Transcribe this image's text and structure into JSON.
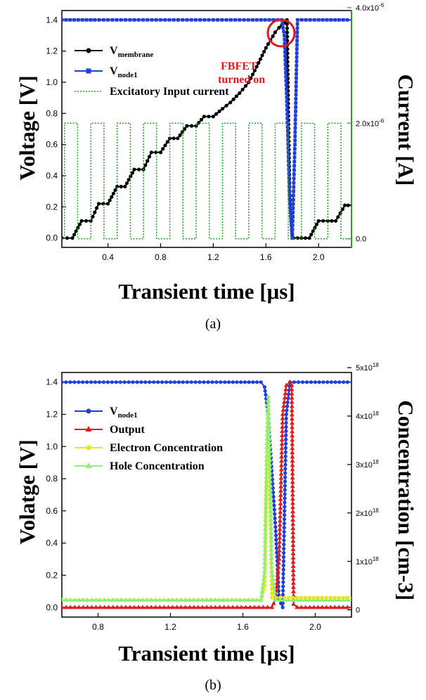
{
  "colors": {
    "membrane": "#000000",
    "node1": "#1f3fdc",
    "current": "#2ca02c",
    "output": "#e31a1c",
    "electron": "#f2e600",
    "hole": "#8ef07a",
    "right_axis_a": "#2e9e2e",
    "circle": "#e31a1c"
  },
  "chart_data": [
    {
      "type": "line",
      "caption": "(a)",
      "xlabel": "Transient time [μs]",
      "ylabel": "Voltage [V]",
      "y2label": "Current [A]",
      "xlim": [
        0.05,
        2.25
      ],
      "ylim": [
        -0.06,
        1.46
      ],
      "y2lim": [
        -1.5e-07,
        3.95e-06
      ],
      "xticks": [
        0.4,
        0.8,
        1.2,
        1.6,
        2.0
      ],
      "yticks": [
        0.0,
        0.2,
        0.4,
        0.6,
        0.8,
        1.0,
        1.2,
        1.4
      ],
      "y2ticks": [
        0.0,
        2e-06,
        4e-06
      ],
      "xtick_labels": [
        "0.4",
        "0.8",
        "1.2",
        "1.6",
        "2.0"
      ],
      "ytick_labels": [
        "0.0",
        "0.2",
        "0.4",
        "0.6",
        "0.8",
        "1.0",
        "1.2",
        "1.4"
      ],
      "y2tick_labels": [
        "0.0",
        "2.0x10",
        "4.0x10"
      ],
      "y2tick_exps": [
        "",
        "-6",
        "-6"
      ],
      "legend_position": "top-left",
      "annotation": {
        "line1": "FBFET",
        "line2": "turned on",
        "x": 1.78,
        "y": 1.34
      },
      "series": [
        {
          "key": "membrane",
          "name_main": "V",
          "name_sub": "membrane",
          "marker": "circle",
          "x": [
            0.05,
            0.13,
            0.2,
            0.27,
            0.33,
            0.4,
            0.47,
            0.53,
            0.6,
            0.67,
            0.73,
            0.8,
            0.87,
            0.93,
            1.0,
            1.07,
            1.13,
            1.2,
            1.27,
            1.33,
            1.4,
            1.47,
            1.53,
            1.6,
            1.67,
            1.7,
            1.74,
            1.76,
            1.78,
            1.8,
            1.81,
            1.84,
            1.93,
            2.0,
            2.07,
            2.13,
            2.2,
            2.25
          ],
          "y": [
            0.0,
            0.0,
            0.11,
            0.11,
            0.22,
            0.22,
            0.33,
            0.33,
            0.44,
            0.44,
            0.55,
            0.55,
            0.64,
            0.64,
            0.72,
            0.72,
            0.78,
            0.78,
            0.83,
            0.87,
            0.93,
            1.0,
            1.1,
            1.22,
            1.32,
            1.35,
            1.38,
            1.4,
            0.3,
            0.02,
            0.0,
            0.0,
            0.0,
            0.11,
            0.11,
            0.11,
            0.21,
            0.21
          ]
        },
        {
          "key": "node1",
          "name_main": "V",
          "name_sub": "node1",
          "marker": "square",
          "x": [
            0.05,
            0.3,
            0.6,
            0.9,
            1.2,
            1.5,
            1.72,
            1.74,
            1.76,
            1.78,
            1.8,
            1.82,
            1.84,
            2.0,
            2.25
          ],
          "y": [
            1.4,
            1.4,
            1.4,
            1.4,
            1.4,
            1.4,
            1.4,
            1.3,
            0.85,
            0.25,
            0.0,
            0.6,
            1.4,
            1.4,
            1.4
          ]
        },
        {
          "key": "current",
          "name": "Excitatory Input current",
          "marker": "none",
          "axis": "right",
          "pulse_period": 0.2,
          "pulse_width": 0.1,
          "pulse_start": 0.07,
          "amplitude": 2e-06
        }
      ]
    },
    {
      "type": "line",
      "caption": "(b)",
      "xlabel": "Transient time [μs]",
      "ylabel": "Volatge [V]",
      "y2label": "Concentration [cm-3]",
      "xlim": [
        0.6,
        2.2
      ],
      "ylim": [
        -0.06,
        1.46
      ],
      "y2lim": [
        -1.5e+17,
        4.9e+18
      ],
      "xticks": [
        0.8,
        1.2,
        1.6,
        2.0
      ],
      "yticks": [
        0.0,
        0.2,
        0.4,
        0.6,
        0.8,
        1.0,
        1.2,
        1.4
      ],
      "y2ticks": [
        0.0,
        1e+18,
        2e+18,
        3e+18,
        4e+18,
        5e+18
      ],
      "xtick_labels": [
        "0.8",
        "1.2",
        "1.6",
        "2.0"
      ],
      "ytick_labels": [
        "0.0",
        "0.2",
        "0.4",
        "0.6",
        "0.8",
        "1.0",
        "1.2",
        "1.4"
      ],
      "y2tick_labels": [
        "0",
        "1x10",
        "2x10",
        "3x10",
        "4x10",
        "5x10"
      ],
      "y2tick_exps": [
        "",
        "18",
        "18",
        "18",
        "18",
        "18"
      ],
      "legend_position": "top-left",
      "series": [
        {
          "key": "node1",
          "name_main": "V",
          "name_sub": "node1",
          "marker": "circle",
          "x": [
            0.6,
            0.9,
            1.2,
            1.5,
            1.7,
            1.72,
            1.74,
            1.76,
            1.78,
            1.8,
            1.82,
            1.84,
            1.86,
            2.0,
            2.2
          ],
          "y": [
            1.4,
            1.4,
            1.4,
            1.4,
            1.4,
            1.37,
            1.2,
            0.85,
            0.5,
            0.05,
            0.0,
            1.2,
            1.4,
            1.4,
            1.4
          ]
        },
        {
          "key": "output",
          "name": "Output",
          "marker": "triangle",
          "x": [
            0.6,
            1.0,
            1.4,
            1.76,
            1.78,
            1.8,
            1.82,
            1.84,
            1.86,
            1.87,
            1.88,
            1.9,
            2.2
          ],
          "y": [
            0.0,
            0.0,
            0.0,
            0.0,
            0.05,
            0.3,
            1.2,
            1.38,
            1.4,
            1.38,
            0.02,
            0.0,
            0.0
          ]
        },
        {
          "key": "electron",
          "name": "Electron Concentration",
          "marker": "circle",
          "x": [
            0.6,
            1.0,
            1.4,
            1.7,
            1.72,
            1.73,
            1.74,
            1.75,
            1.76,
            2.2
          ],
          "y": [
            2e+17,
            2e+17,
            2e+17,
            2e+17,
            5e+17,
            2.5e+18,
            4.4e+18,
            2.2e+18,
            2.5e+17,
            2.5e+17
          ]
        },
        {
          "key": "hole",
          "name": "Hole Concentration",
          "marker": "triangle",
          "x": [
            0.6,
            1.0,
            1.4,
            1.7,
            1.72,
            1.73,
            1.74,
            1.75,
            1.76,
            1.78,
            2.2
          ],
          "y": [
            2e+17,
            2e+17,
            2e+17,
            2e+17,
            8e+17,
            3e+18,
            4.4e+18,
            3e+18,
            8e+17,
            2e+17,
            2e+17
          ]
        }
      ]
    }
  ]
}
